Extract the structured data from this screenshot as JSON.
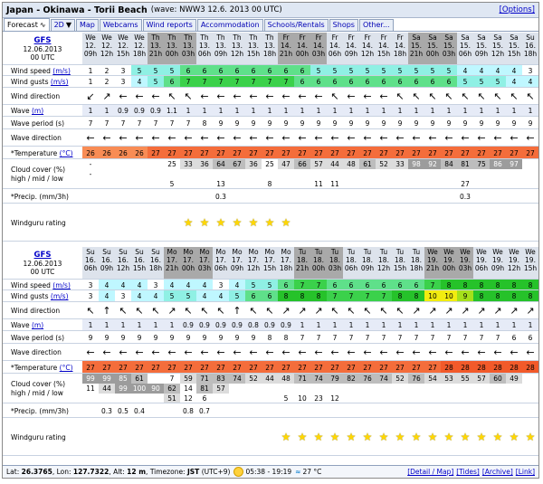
{
  "title": {
    "name": "Japan - Okinawa - Torii Beach",
    "info": "(wave: NWW3 12.6. 2013 00 UTC)",
    "options": "[Options]"
  },
  "tabs": [
    {
      "label": "Forecast",
      "active": true,
      "icon": "chart-icon"
    },
    {
      "label": "2D",
      "active": false,
      "icon": "dropdown-icon"
    },
    {
      "label": "Map"
    },
    {
      "label": "Webcams"
    },
    {
      "label": "Wind reports"
    },
    {
      "label": "Accommodation"
    },
    {
      "label": "Schools/Rentals"
    },
    {
      "label": "Shops"
    },
    {
      "label": "Other..."
    }
  ],
  "labels": {
    "wind_speed": "Wind speed",
    "wind_gusts": "Wind gusts",
    "ms": "(m/s)",
    "wind_direction": "Wind direction",
    "wave": "Wave",
    "wave_unit": "(m)",
    "wave_period": "Wave period (s)",
    "wave_direction": "Wave direction",
    "temperature": "*Temperature",
    "temp_unit": "(°C)",
    "cloud": "Cloud cover (%)",
    "cloud_sub": "high / mid / low",
    "precip": "*Precip. (mm/3h)",
    "windguru": "Windguru rating"
  },
  "colors": {
    "header_day": "#dde3ec",
    "header_night": "#a9a9a9",
    "accent_link": "#0000c8"
  },
  "blocks": [
    {
      "model": "GFS",
      "date": "12.06.2013",
      "time": "00 UTC",
      "days": [
        "We",
        "We",
        "We",
        "We",
        "Th",
        "Th",
        "Th",
        "Th",
        "Th",
        "Th",
        "Th",
        "Th",
        "Fr",
        "Fr",
        "Fr",
        "Fr",
        "Fr",
        "Fr",
        "Fr",
        "Fr",
        "Sa",
        "Sa",
        "Sa",
        "Sa",
        "Sa",
        "Sa",
        "Sa",
        "Su"
      ],
      "dates": [
        "12.",
        "12.",
        "12.",
        "12.",
        "13.",
        "13.",
        "13.",
        "13.",
        "13.",
        "13.",
        "13.",
        "13.",
        "14.",
        "14.",
        "14.",
        "14.",
        "14.",
        "14.",
        "14.",
        "14.",
        "15.",
        "15.",
        "15.",
        "15.",
        "15.",
        "15.",
        "15.",
        "16."
      ],
      "hours": [
        "09h",
        "12h",
        "15h",
        "18h",
        "21h",
        "00h",
        "03h",
        "06h",
        "09h",
        "12h",
        "15h",
        "18h",
        "21h",
        "00h",
        "03h",
        "06h",
        "09h",
        "12h",
        "15h",
        "18h",
        "21h",
        "00h",
        "03h",
        "06h",
        "09h",
        "12h",
        "15h",
        "18h"
      ],
      "night": [
        false,
        false,
        false,
        false,
        true,
        true,
        true,
        false,
        false,
        false,
        false,
        false,
        true,
        true,
        true,
        false,
        false,
        false,
        false,
        false,
        true,
        true,
        true,
        false,
        false,
        false,
        false,
        false
      ],
      "wind_speed": [
        1,
        2,
        3,
        5,
        5,
        5,
        6,
        6,
        6,
        6,
        6,
        6,
        6,
        6,
        5,
        5,
        5,
        5,
        5,
        5,
        5,
        5,
        5,
        4,
        4,
        4,
        4,
        3
      ],
      "wind_gusts": [
        1,
        2,
        3,
        4,
        5,
        6,
        7,
        7,
        7,
        7,
        7,
        7,
        7,
        6,
        6,
        6,
        6,
        6,
        6,
        6,
        6,
        6,
        6,
        5,
        5,
        5,
        4,
        4
      ],
      "wind_dir": [
        "↙",
        "↗",
        "←",
        "←",
        "←",
        "↖",
        "↖",
        "←",
        "←",
        "←",
        "←",
        "←",
        "←",
        "←",
        "←",
        "↖",
        "←",
        "←",
        "←",
        "↖",
        "↖",
        "↖",
        "↖",
        "↖",
        "↖",
        "↖",
        "↖",
        "↖"
      ],
      "wave": [
        "1",
        "1",
        "0.9",
        "0.9",
        "0.9",
        "1.1",
        "1",
        "1",
        "1",
        "1",
        "1",
        "1",
        "1",
        "1",
        "1",
        "1",
        "1",
        "1",
        "1",
        "1",
        "1",
        "1",
        "1",
        "1",
        "1",
        "1",
        "1",
        "1"
      ],
      "wave_period": [
        7,
        7,
        7,
        7,
        7,
        7,
        7,
        8,
        9,
        9,
        9,
        9,
        9,
        9,
        9,
        9,
        9,
        9,
        9,
        9,
        9,
        9,
        9,
        9,
        9,
        9,
        9,
        9
      ],
      "wave_dir": [
        "←",
        "←",
        "←",
        "←",
        "←",
        "←",
        "←",
        "←",
        "←",
        "←",
        "←",
        "←",
        "←",
        "←",
        "←",
        "←",
        "←",
        "←",
        "←",
        "←",
        "←",
        "←",
        "←",
        "←",
        "←",
        "←",
        "←",
        "←"
      ],
      "temperature": [
        26,
        26,
        26,
        26,
        27,
        27,
        27,
        27,
        27,
        27,
        27,
        27,
        27,
        27,
        27,
        27,
        27,
        27,
        27,
        27,
        27,
        27,
        27,
        27,
        27,
        27,
        27,
        27
      ],
      "cloud_high": [
        "-",
        "",
        "",
        "",
        "",
        "25",
        "33",
        "36",
        "64",
        "67",
        "36",
        "25",
        "47",
        "66",
        "57",
        "44",
        "48",
        "61",
        "52",
        "33",
        "98",
        "92",
        "84",
        "81",
        "75",
        "86",
        "97",
        ""
      ],
      "cloud_mid": [
        "-",
        "",
        "",
        "",
        "",
        "",
        "",
        "",
        "",
        "",
        "",
        "",
        "",
        "",
        "",
        "",
        "",
        "",
        "",
        "",
        "",
        "",
        "",
        "",
        "",
        "",
        "",
        ""
      ],
      "cloud_low": [
        "",
        "",
        "",
        "",
        "",
        "5",
        "",
        "",
        "13",
        "",
        "",
        "8",
        "",
        "",
        "11",
        "11",
        "",
        "",
        "",
        "",
        "",
        "",
        "",
        "27",
        "",
        "",
        "",
        ""
      ],
      "precip": [
        "",
        "",
        "",
        "",
        "",
        "",
        "",
        "",
        "0.3",
        "",
        "",
        "",
        "",
        "",
        "",
        "",
        "",
        "",
        "",
        "",
        "",
        "",
        "",
        "0.3",
        "",
        "",
        "",
        ""
      ],
      "stars": [
        0,
        0,
        0,
        0,
        0,
        0,
        1,
        1,
        1,
        1,
        1,
        1,
        1,
        0,
        0,
        0,
        0,
        0,
        0,
        0,
        0,
        0,
        0,
        0,
        0,
        0,
        0,
        0
      ]
    },
    {
      "model": "GFS",
      "date": "12.06.2013",
      "time": "00 UTC",
      "days": [
        "Su",
        "Su",
        "Su",
        "Su",
        "Su",
        "Mo",
        "Mo",
        "Mo",
        "Mo",
        "Mo",
        "Mo",
        "Mo",
        "Mo",
        "Tu",
        "Tu",
        "Tu",
        "Tu",
        "Tu",
        "Tu",
        "Tu",
        "Tu",
        "We",
        "We",
        "We",
        "We",
        "We",
        "We",
        "We"
      ],
      "dates": [
        "16.",
        "16.",
        "16.",
        "16.",
        "16.",
        "17.",
        "17.",
        "17.",
        "17.",
        "17.",
        "17.",
        "17.",
        "17.",
        "18.",
        "18.",
        "18.",
        "18.",
        "18.",
        "18.",
        "18.",
        "18.",
        "19.",
        "19.",
        "19.",
        "19.",
        "19.",
        "19.",
        "19."
      ],
      "hours": [
        "06h",
        "09h",
        "12h",
        "15h",
        "18h",
        "21h",
        "00h",
        "03h",
        "06h",
        "09h",
        "12h",
        "15h",
        "18h",
        "21h",
        "00h",
        "03h",
        "06h",
        "09h",
        "12h",
        "15h",
        "18h",
        "21h",
        "00h",
        "03h",
        "06h",
        "09h",
        "12h",
        "15h"
      ],
      "night": [
        false,
        false,
        false,
        false,
        false,
        true,
        true,
        true,
        false,
        false,
        false,
        false,
        false,
        true,
        true,
        true,
        false,
        false,
        false,
        false,
        false,
        true,
        true,
        true,
        false,
        false,
        false,
        false
      ],
      "wind_speed": [
        3,
        4,
        4,
        4,
        3,
        4,
        4,
        4,
        3,
        4,
        5,
        5,
        6,
        7,
        7,
        6,
        6,
        6,
        6,
        6,
        6,
        7,
        8,
        8,
        8,
        8,
        8,
        8
      ],
      "wind_gusts": [
        3,
        4,
        3,
        4,
        4,
        5,
        5,
        4,
        4,
        5,
        6,
        6,
        8,
        8,
        8,
        7,
        7,
        7,
        7,
        8,
        8,
        10,
        10,
        9,
        8,
        8,
        8,
        8
      ],
      "wind_dir": [
        "↖",
        "↑",
        "↖",
        "↖",
        "↖",
        "↗",
        "↖",
        "↖",
        "↖",
        "↑",
        "↖",
        "↖",
        "↗",
        "↗",
        "↗",
        "↖",
        "↖",
        "↖",
        "↖",
        "↖",
        "↗",
        "↗",
        "↗",
        "↗",
        "↗",
        "↗",
        "↗",
        "↗"
      ],
      "wave": [
        "1",
        "1",
        "1",
        "1",
        "1",
        "1",
        "0.9",
        "0.9",
        "0.9",
        "0.9",
        "0.8",
        "0.9",
        "0.9",
        "1",
        "1",
        "1",
        "1",
        "1",
        "1",
        "1",
        "1",
        "1",
        "1",
        "1",
        "1",
        "1",
        "1",
        "1"
      ],
      "wave_period": [
        9,
        9,
        9,
        9,
        9,
        9,
        9,
        9,
        9,
        9,
        9,
        8,
        8,
        7,
        7,
        7,
        7,
        7,
        7,
        7,
        7,
        7,
        7,
        7,
        7,
        7,
        6,
        6
      ],
      "wave_dir": [
        "←",
        "←",
        "←",
        "←",
        "←",
        "←",
        "←",
        "←",
        "←",
        "←",
        "←",
        "←",
        "←",
        "←",
        "←",
        "←",
        "←",
        "←",
        "←",
        "←",
        "←",
        "←",
        "←",
        "←",
        "←",
        "←",
        "←",
        "←"
      ],
      "temperature": [
        27,
        27,
        27,
        27,
        27,
        27,
        27,
        27,
        27,
        27,
        27,
        27,
        27,
        27,
        27,
        27,
        27,
        27,
        27,
        27,
        27,
        27,
        28,
        28,
        28,
        28,
        28,
        28
      ],
      "cloud_high": [
        "99",
        "99",
        "85",
        "61",
        "",
        "7",
        "59",
        "71",
        "83",
        "74",
        "52",
        "44",
        "48",
        "71",
        "74",
        "79",
        "82",
        "76",
        "74",
        "52",
        "76",
        "54",
        "53",
        "55",
        "57",
        "60",
        "49",
        ""
      ],
      "cloud_mid": [
        "11",
        "44",
        "99",
        "100",
        "90",
        "62",
        "14",
        "81",
        "57",
        "",
        "",
        "",
        "",
        "",
        "",
        "",
        "",
        "",
        "",
        "",
        "",
        "",
        "",
        "",
        "",
        "",
        "",
        ""
      ],
      "cloud_low": [
        "",
        "",
        "",
        "",
        "",
        "51",
        "12",
        "6",
        "",
        "",
        "",
        "",
        "5",
        "10",
        "23",
        "12",
        "",
        "",
        "",
        "",
        "",
        "",
        "",
        "",
        "",
        "",
        "",
        ""
      ],
      "precip": [
        "",
        "0.3",
        "0.5",
        "0.4",
        "",
        "",
        "0.8",
        "0.7",
        "",
        "",
        "",
        "",
        "",
        "",
        "",
        "",
        "",
        "",
        "",
        "",
        "",
        "",
        "",
        "",
        "",
        "",
        "",
        ""
      ],
      "stars": [
        0,
        0,
        0,
        0,
        0,
        0,
        0,
        0,
        0,
        0,
        0,
        0,
        1,
        1,
        1,
        1,
        1,
        1,
        1,
        1,
        1,
        1,
        1,
        1,
        1,
        1,
        1,
        1
      ]
    }
  ],
  "footer": {
    "lat_label": "Lat:",
    "lat": "26.3765",
    "lon_label": "Lon:",
    "lon": "127.7322",
    "alt_label": "Alt:",
    "alt": "12 m",
    "tz_label": "Timezone:",
    "tz": "JST",
    "tz_offset": "(UTC+9)",
    "sun": "05:38 - 19:19",
    "water_temp": "27 °C",
    "links": [
      "[Detail / Map]",
      "[Tides]",
      "[Archive]",
      "[Link]"
    ]
  }
}
